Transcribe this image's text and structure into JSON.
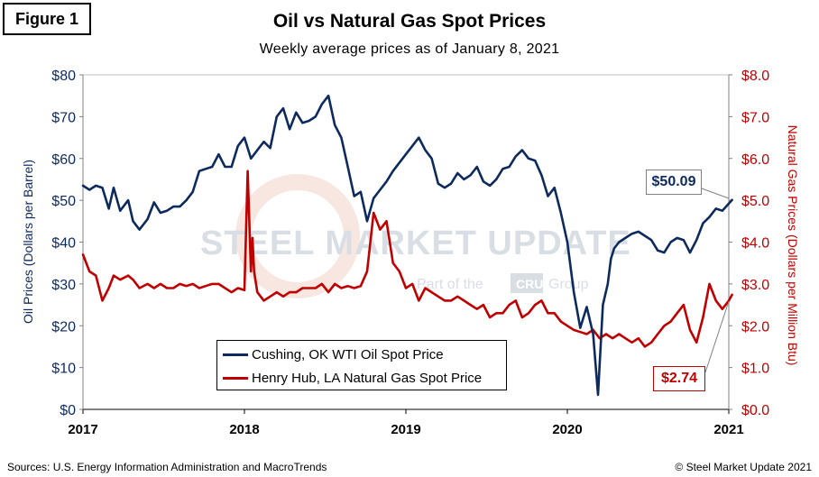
{
  "figure_label": "Figure 1",
  "source": "Sources: U.S. Energy Information Administration and MacroTrends",
  "copyright": "© Steel Market Update 2021",
  "watermark": {
    "brand": "STEEL MARKET UPDATE",
    "tagline_prefix": "Part of the",
    "tagline_badge": "CRU",
    "tagline_suffix": "Group"
  },
  "colors": {
    "oil": "#0d2a5e",
    "gas": "#c00000",
    "watermark": "#d9dee5"
  },
  "callouts": {
    "oil_last": "$50.09",
    "gas_last": "$2.74"
  },
  "chart_data": {
    "type": "line",
    "title": "Oil vs Natural Gas Spot Prices",
    "subtitle": "Weekly average prices as of January 8, 2021",
    "xlabel": "",
    "ylabel_left": "Oil Prices (Dollars per Barrel)",
    "ylabel_right": "Natural Gas Prices (Dollars per Million Btu)",
    "x_range": [
      2017,
      2021
    ],
    "ylim_left": [
      0,
      80
    ],
    "ylim_right": [
      0,
      8
    ],
    "x_ticks": [
      "2017",
      "2018",
      "2019",
      "2020",
      "2021"
    ],
    "y_ticks_left": [
      "$0",
      "$10",
      "$20",
      "$30",
      "$40",
      "$50",
      "$60",
      "$70",
      "$80"
    ],
    "y_ticks_right": [
      "$0.0",
      "$1.0",
      "$2.0",
      "$3.0",
      "$4.0",
      "$5.0",
      "$6.0",
      "$7.0",
      "$8.0"
    ],
    "grid": false,
    "series": [
      {
        "name": "Cushing, OK WTI Oil Spot Price",
        "axis": "left",
        "x": [
          2017.0,
          2017.04,
          2017.08,
          2017.12,
          2017.16,
          2017.19,
          2017.23,
          2017.28,
          2017.31,
          2017.35,
          2017.4,
          2017.44,
          2017.48,
          2017.52,
          2017.56,
          2017.6,
          2017.64,
          2017.68,
          2017.72,
          2017.76,
          2017.8,
          2017.84,
          2017.88,
          2017.92,
          2017.96,
          2018.0,
          2018.04,
          2018.08,
          2018.12,
          2018.16,
          2018.2,
          2018.24,
          2018.28,
          2018.32,
          2018.36,
          2018.4,
          2018.44,
          2018.48,
          2018.52,
          2018.56,
          2018.6,
          2018.64,
          2018.68,
          2018.72,
          2018.76,
          2018.8,
          2018.84,
          2018.88,
          2018.92,
          2018.96,
          2019.0,
          2019.04,
          2019.08,
          2019.12,
          2019.16,
          2019.2,
          2019.24,
          2019.28,
          2019.32,
          2019.36,
          2019.4,
          2019.44,
          2019.48,
          2019.52,
          2019.56,
          2019.6,
          2019.64,
          2019.68,
          2019.72,
          2019.76,
          2019.8,
          2019.84,
          2019.88,
          2019.92,
          2019.96,
          2020.0,
          2020.04,
          2020.08,
          2020.12,
          2020.16,
          2020.19,
          2020.22,
          2020.25,
          2020.27,
          2020.29,
          2020.32,
          2020.36,
          2020.4,
          2020.44,
          2020.48,
          2020.52,
          2020.56,
          2020.6,
          2020.64,
          2020.68,
          2020.72,
          2020.76,
          2020.8,
          2020.84,
          2020.88,
          2020.92,
          2020.96,
          2021.02
        ],
        "values": [
          53.5,
          52.5,
          53.5,
          53.0,
          48.0,
          53.0,
          47.5,
          50.0,
          45.0,
          43.0,
          45.5,
          49.5,
          47.0,
          47.5,
          48.5,
          48.5,
          50.0,
          52.0,
          57.0,
          57.5,
          58.0,
          61.0,
          58.0,
          58.0,
          63.0,
          65.0,
          60.0,
          62.0,
          64.0,
          62.5,
          70.0,
          72.0,
          67.0,
          71.0,
          68.5,
          69.0,
          70.0,
          73.0,
          75.0,
          68.0,
          65.0,
          58.0,
          51.0,
          52.0,
          45.0,
          50.5,
          52.5,
          54.5,
          57.0,
          59.0,
          61.0,
          63.0,
          65.0,
          62.0,
          60.0,
          54.0,
          53.0,
          54.0,
          56.5,
          55.0,
          56.0,
          58.0,
          54.5,
          53.5,
          55.0,
          57.5,
          58.0,
          60.5,
          62.0,
          60.0,
          59.5,
          56.0,
          51.0,
          53.0,
          47.0,
          40.0,
          28.0,
          19.5,
          24.5,
          18.0,
          3.5,
          25.0,
          30.0,
          36.0,
          38.5,
          40.0,
          41.0,
          42.0,
          42.5,
          41.5,
          40.5,
          38.0,
          37.5,
          40.0,
          41.0,
          40.5,
          37.5,
          40.5,
          44.5,
          46.0,
          48.0,
          47.5,
          50.09
        ]
      },
      {
        "name": "Henry Hub, LA Natural Gas Spot Price",
        "axis": "right",
        "x": [
          2017.0,
          2017.04,
          2017.08,
          2017.12,
          2017.16,
          2017.19,
          2017.23,
          2017.28,
          2017.31,
          2017.35,
          2017.4,
          2017.44,
          2017.48,
          2017.52,
          2017.56,
          2017.6,
          2017.64,
          2017.68,
          2017.72,
          2017.76,
          2017.8,
          2017.84,
          2017.88,
          2017.92,
          2017.96,
          2018.0,
          2018.02,
          2018.04,
          2018.05,
          2018.06,
          2018.08,
          2018.12,
          2018.16,
          2018.2,
          2018.24,
          2018.28,
          2018.32,
          2018.36,
          2018.4,
          2018.44,
          2018.48,
          2018.52,
          2018.56,
          2018.6,
          2018.64,
          2018.68,
          2018.72,
          2018.76,
          2018.8,
          2018.84,
          2018.88,
          2018.92,
          2018.96,
          2019.0,
          2019.04,
          2019.08,
          2019.12,
          2019.16,
          2019.2,
          2019.24,
          2019.28,
          2019.32,
          2019.36,
          2019.4,
          2019.44,
          2019.48,
          2019.52,
          2019.56,
          2019.6,
          2019.64,
          2019.68,
          2019.72,
          2019.76,
          2019.8,
          2019.84,
          2019.88,
          2019.92,
          2019.96,
          2020.0,
          2020.04,
          2020.08,
          2020.12,
          2020.16,
          2020.2,
          2020.24,
          2020.28,
          2020.32,
          2020.36,
          2020.4,
          2020.44,
          2020.48,
          2020.52,
          2020.56,
          2020.6,
          2020.64,
          2020.68,
          2020.72,
          2020.76,
          2020.8,
          2020.84,
          2020.88,
          2020.92,
          2020.96,
          2021.0,
          2021.02
        ],
        "values": [
          3.7,
          3.3,
          3.2,
          2.6,
          2.9,
          3.2,
          3.1,
          3.2,
          3.1,
          2.9,
          3.0,
          2.9,
          3.0,
          2.9,
          2.9,
          3.0,
          2.95,
          3.0,
          2.9,
          2.95,
          3.0,
          3.0,
          2.9,
          2.8,
          2.9,
          2.85,
          5.7,
          3.3,
          4.1,
          3.3,
          2.8,
          2.6,
          2.7,
          2.8,
          2.7,
          2.8,
          2.8,
          2.9,
          2.9,
          2.9,
          3.0,
          2.8,
          3.0,
          2.9,
          2.95,
          2.9,
          2.95,
          3.3,
          4.7,
          4.3,
          4.5,
          3.5,
          3.3,
          2.9,
          3.0,
          2.6,
          2.9,
          2.8,
          2.7,
          2.6,
          2.6,
          2.7,
          2.6,
          2.5,
          2.4,
          2.5,
          2.2,
          2.3,
          2.3,
          2.5,
          2.6,
          2.2,
          2.3,
          2.5,
          2.6,
          2.3,
          2.3,
          2.1,
          2.0,
          1.9,
          1.85,
          1.8,
          1.9,
          1.7,
          1.8,
          1.7,
          1.8,
          1.7,
          1.6,
          1.7,
          1.5,
          1.6,
          1.8,
          2.0,
          2.1,
          2.3,
          2.5,
          1.9,
          1.6,
          2.2,
          3.0,
          2.6,
          2.4,
          2.6,
          2.74
        ]
      }
    ]
  }
}
